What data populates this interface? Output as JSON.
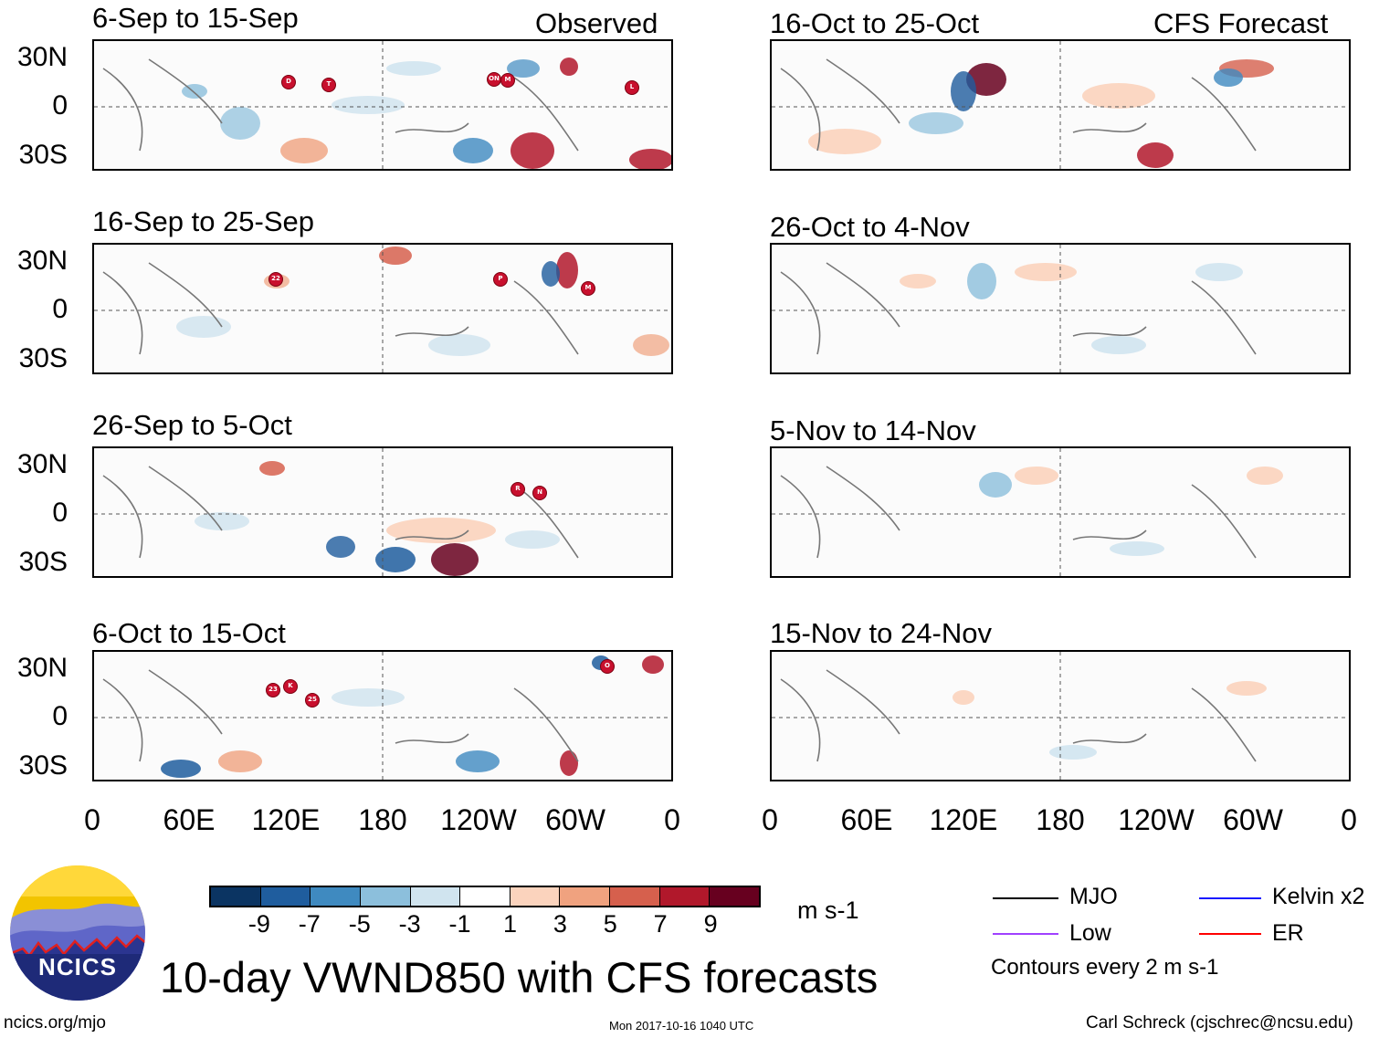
{
  "column_headers": {
    "observed": "Observed",
    "forecast": "CFS Forecast"
  },
  "observed_panels": [
    {
      "title": "6-Sep to 15-Sep",
      "storms": [
        "D",
        "T",
        "ON",
        "M",
        "L"
      ]
    },
    {
      "title": "16-Sep to 25-Sep",
      "storms": [
        "22",
        "P",
        "M"
      ]
    },
    {
      "title": "26-Sep to 5-Oct",
      "storms": [
        "R",
        "N"
      ]
    },
    {
      "title": "6-Oct to 15-Oct",
      "storms": [
        "23",
        "K",
        "25",
        "O"
      ]
    }
  ],
  "forecast_panels": [
    {
      "title": "16-Oct to 25-Oct"
    },
    {
      "title": "26-Oct to 4-Nov"
    },
    {
      "title": "5-Nov to 14-Nov"
    },
    {
      "title": "15-Nov to 24-Nov"
    }
  ],
  "lat_labels": [
    "30N",
    "0",
    "30S"
  ],
  "lon_labels": [
    "0",
    "60E",
    "120E",
    "180",
    "120W",
    "60W",
    "0"
  ],
  "colorbar": {
    "ticks": [
      "-9",
      "-7",
      "-5",
      "-3",
      "-1",
      "1",
      "3",
      "5",
      "7",
      "9"
    ],
    "colors": [
      "#0b3462",
      "#1f5d9e",
      "#3f8ac0",
      "#8cbfdc",
      "#d0e4ef",
      "#ffffff",
      "#fbd3bd",
      "#f0a27f",
      "#d6604d",
      "#b1182b",
      "#67001f"
    ],
    "units": "m s-1"
  },
  "legend": {
    "items": [
      {
        "label": "MJO",
        "color": "#000000"
      },
      {
        "label": "Kelvin x2",
        "color": "#1a1aff"
      },
      {
        "label": "Low",
        "color": "#a040ff"
      },
      {
        "label": "ER",
        "color": "#ff0000"
      }
    ],
    "contour_note": "Contours every 2 m s-1"
  },
  "logo": {
    "text": "NCICS"
  },
  "main_title": "10-day VWND850 with CFS forecasts",
  "footer": {
    "url": "ncics.org/mjo",
    "timestamp": "Mon 2017-10-16 1040 UTC",
    "credit": "Carl Schreck (cjschrec@ncsu.edu)"
  }
}
